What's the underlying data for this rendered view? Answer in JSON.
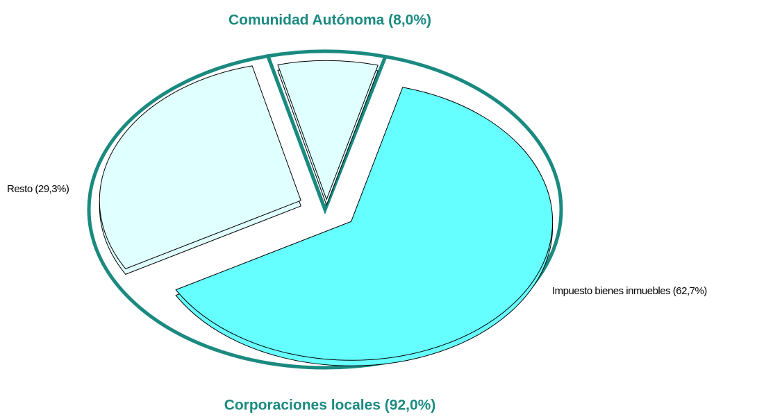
{
  "chart_data": {
    "type": "pie",
    "values": [
      62.7,
      29.3,
      8.0
    ],
    "value_labels": [
      "Impuesto bienes inmuebles (62,7%)",
      "Resto (29,3%)",
      "Comunidad Autónoma (8,0%)"
    ],
    "colors": [
      "#66ffff",
      "#e0ffff",
      "#e0ffff"
    ],
    "groups": [
      {
        "label": "Corporaciones locales (92,0%)",
        "value": 92.0,
        "color": "#1a8a80"
      },
      {
        "label": "Comunidad Autónoma (8,0%)",
        "value": 8.0,
        "color": "#1a8a80"
      }
    ]
  }
}
